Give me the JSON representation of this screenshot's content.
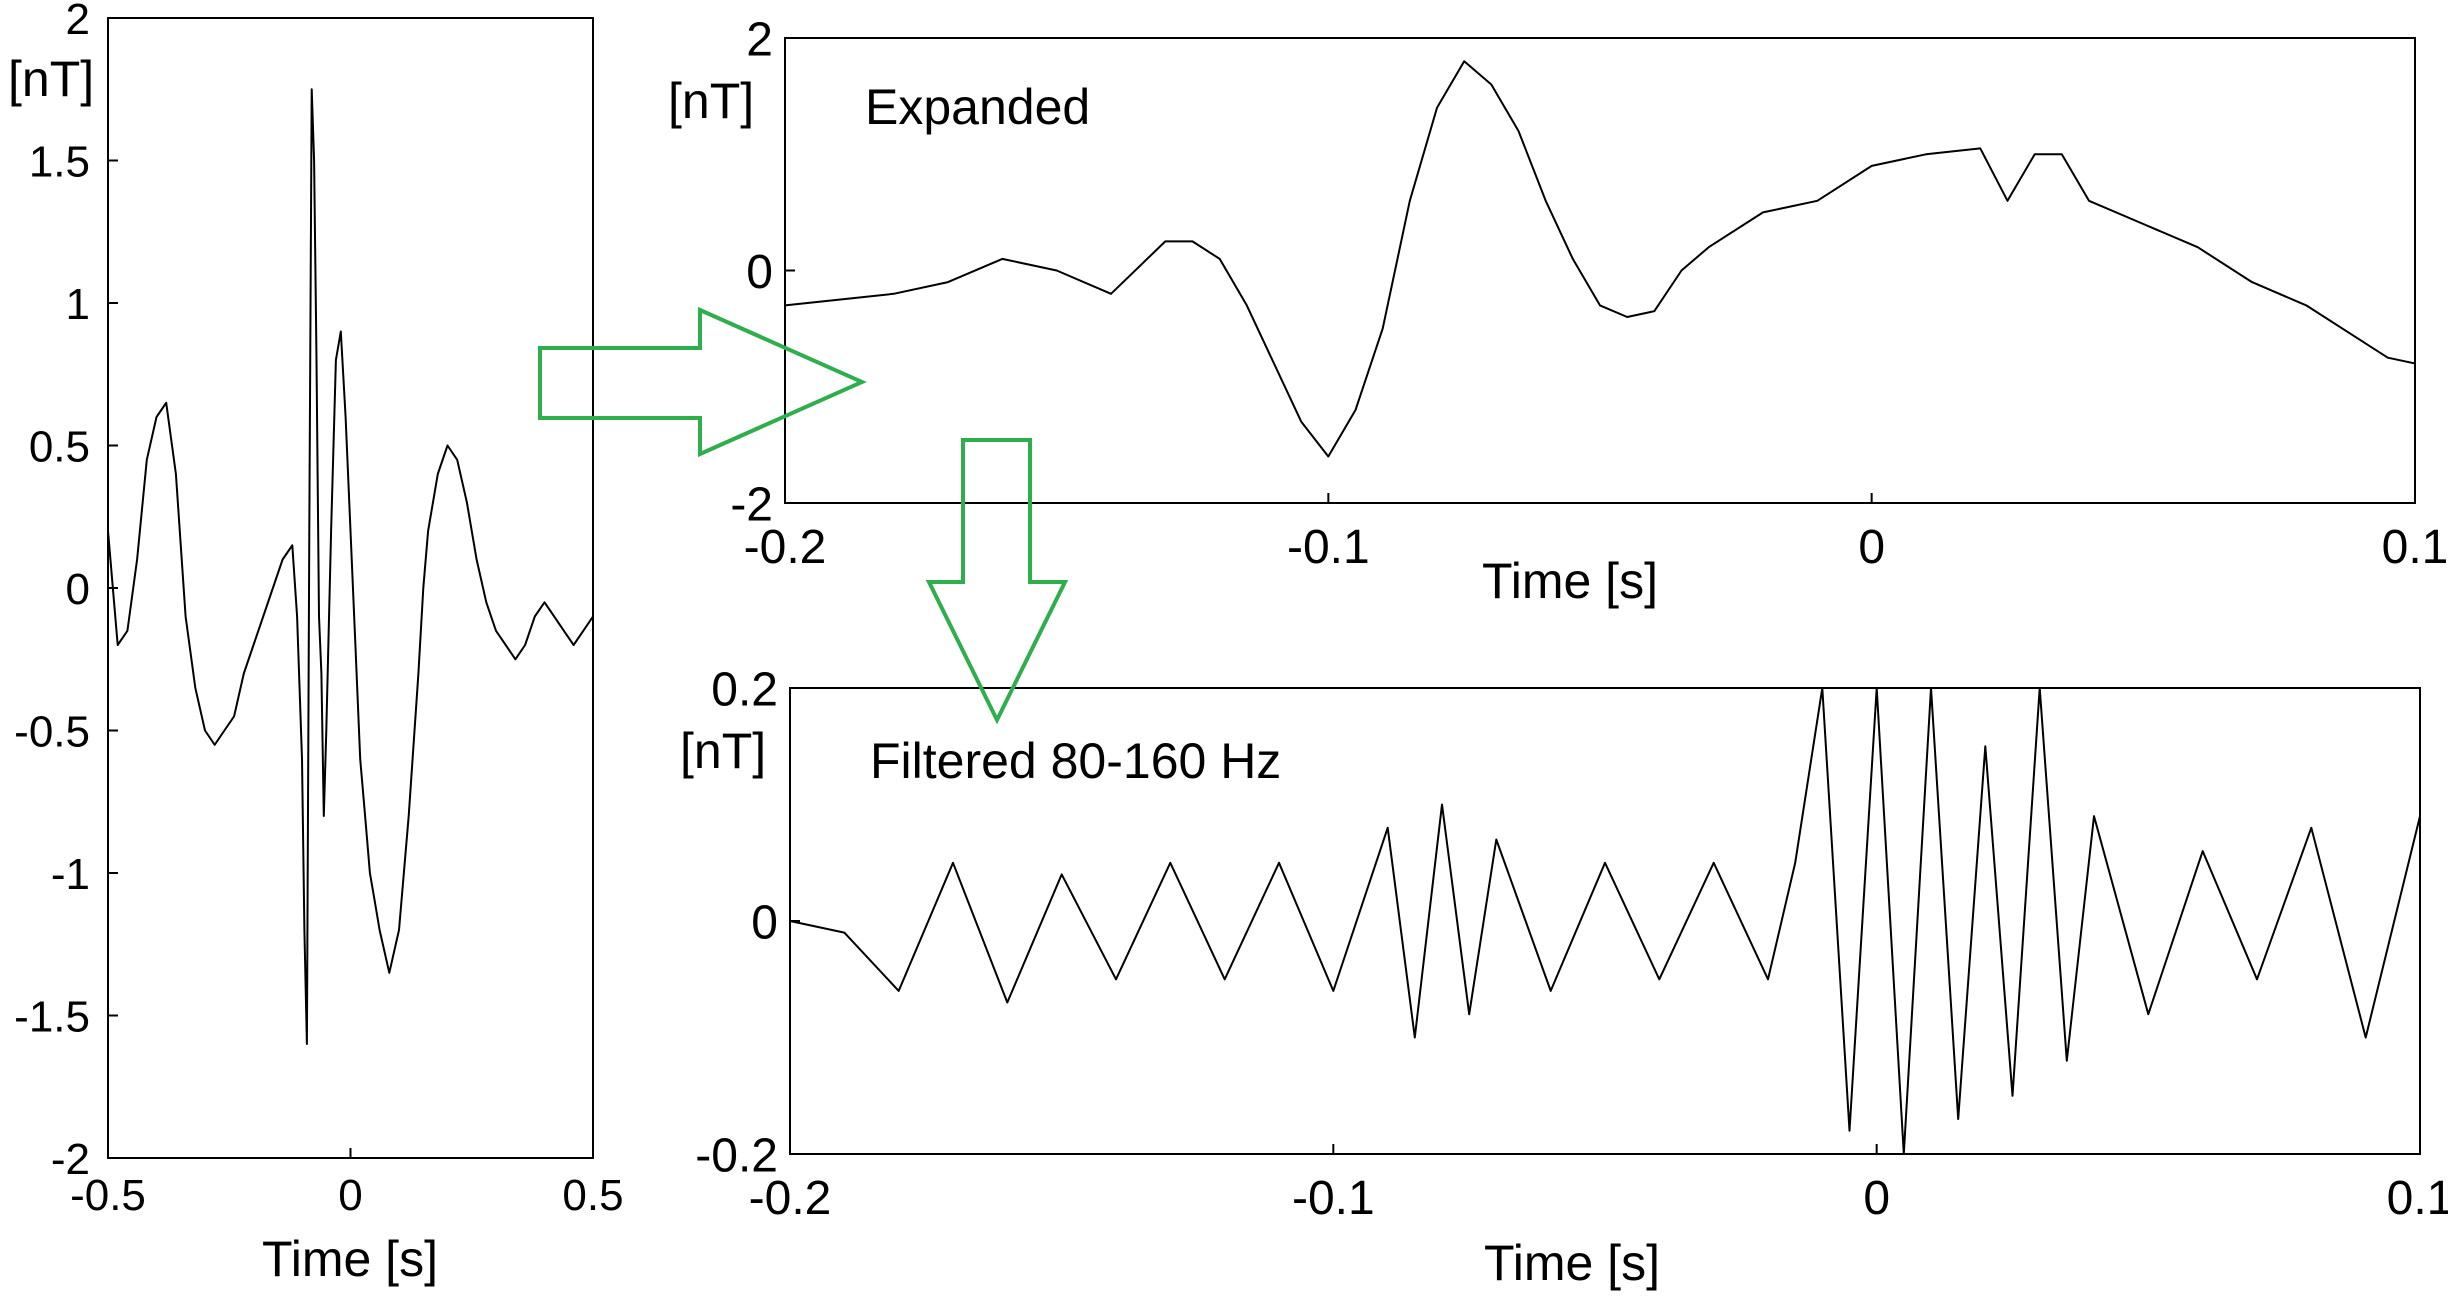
{
  "chart_data": [
    {
      "type": "line",
      "xlabel": "Time [s]",
      "ylabel": "[nT]",
      "xlim": [
        -0.5,
        0.5
      ],
      "ylim": [
        -2,
        2
      ],
      "xticks": [
        "-0.5",
        "0",
        "0.5"
      ],
      "yticks": [
        "2",
        "1.5",
        "1",
        "0.5",
        "0",
        "-0.5",
        "-1",
        "-1.5",
        "-2"
      ],
      "series": [
        {
          "x": [
            -0.5,
            -0.48,
            -0.46,
            -0.44,
            -0.42,
            -0.4,
            -0.38,
            -0.36,
            -0.34,
            -0.32,
            -0.3,
            -0.28,
            -0.26,
            -0.24,
            -0.22,
            -0.2,
            -0.18,
            -0.16,
            -0.14,
            -0.12,
            -0.11,
            -0.1,
            -0.095,
            -0.09,
            -0.085,
            -0.08,
            -0.075,
            -0.07,
            -0.065,
            -0.06,
            -0.055,
            -0.05,
            -0.04,
            -0.03,
            -0.02,
            -0.01,
            0,
            0.01,
            0.02,
            0.03,
            0.04,
            0.05,
            0.06,
            0.08,
            0.1,
            0.12,
            0.14,
            0.15,
            0.16,
            0.18,
            0.2,
            0.22,
            0.24,
            0.26,
            0.28,
            0.3,
            0.32,
            0.34,
            0.36,
            0.38,
            0.4,
            0.42,
            0.44,
            0.46,
            0.48,
            0.5
          ],
          "y": [
            0.2,
            -0.2,
            -0.15,
            0.1,
            0.45,
            0.6,
            0.65,
            0.4,
            -0.1,
            -0.35,
            -0.5,
            -0.55,
            -0.5,
            -0.45,
            -0.3,
            -0.2,
            -0.1,
            0,
            0.1,
            0.15,
            -0.1,
            -0.6,
            -1.2,
            -1.6,
            0.2,
            1.75,
            1.5,
            0.8,
            -0.1,
            -0.3,
            -0.8,
            -0.5,
            0.2,
            0.8,
            0.9,
            0.6,
            0.2,
            -0.2,
            -0.6,
            -0.8,
            -1,
            -1.1,
            -1.2,
            -1.35,
            -1.2,
            -0.8,
            -0.3,
            0,
            0.2,
            0.4,
            0.5,
            0.45,
            0.3,
            0.1,
            -0.05,
            -0.15,
            -0.2,
            -0.25,
            -0.2,
            -0.1,
            -0.05,
            -0.1,
            -0.15,
            -0.2,
            -0.15,
            -0.1
          ]
        }
      ]
    },
    {
      "type": "line",
      "annotation": "Expanded",
      "xlabel": "Time [s]",
      "ylabel": "[nT]",
      "xlim": [
        -0.2,
        0.1
      ],
      "ylim": [
        -2,
        2
      ],
      "xticks": [
        "-0.2",
        "-0.1",
        "0",
        "0.1"
      ],
      "yticks": [
        "2",
        "0",
        "-2"
      ],
      "series": [
        {
          "x": [
            -0.2,
            -0.19,
            -0.18,
            -0.17,
            -0.16,
            -0.15,
            -0.14,
            -0.13,
            -0.125,
            -0.12,
            -0.115,
            -0.11,
            -0.105,
            -0.1,
            -0.095,
            -0.09,
            -0.085,
            -0.08,
            -0.075,
            -0.07,
            -0.065,
            -0.06,
            -0.055,
            -0.05,
            -0.045,
            -0.04,
            -0.035,
            -0.03,
            -0.02,
            -0.01,
            0,
            0.01,
            0.02,
            0.025,
            0.03,
            0.035,
            0.04,
            0.05,
            0.06,
            0.07,
            0.08,
            0.09,
            0.095,
            0.1
          ],
          "y": [
            -0.3,
            -0.25,
            -0.2,
            -0.1,
            0.1,
            0,
            -0.2,
            0.25,
            0.25,
            0.1,
            -0.3,
            -0.8,
            -1.3,
            -1.6,
            -1.2,
            -0.5,
            0.6,
            1.4,
            1.8,
            1.6,
            1.2,
            0.6,
            0.1,
            -0.3,
            -0.4,
            -0.35,
            0,
            0.2,
            0.5,
            0.6,
            0.9,
            1,
            1.05,
            0.6,
            1,
            1,
            0.6,
            0.4,
            0.2,
            -0.1,
            -0.3,
            -0.6,
            -0.75,
            -0.8
          ]
        }
      ]
    },
    {
      "type": "line",
      "annotation": "Filtered 80-160 Hz",
      "xlabel": "Time [s]",
      "ylabel": "[nT]",
      "xlim": [
        -0.2,
        0.1
      ],
      "ylim": [
        -0.2,
        0.2
      ],
      "xticks": [
        "-0.2",
        "-0.1",
        "0",
        "0.1"
      ],
      "yticks": [
        "0.2",
        "0",
        "-0.2"
      ],
      "series": [
        {
          "x": [
            -0.2,
            -0.19,
            -0.18,
            -0.17,
            -0.16,
            -0.15,
            -0.14,
            -0.13,
            -0.12,
            -0.11,
            -0.1,
            -0.09,
            -0.085,
            -0.08,
            -0.075,
            -0.07,
            -0.06,
            -0.05,
            -0.04,
            -0.03,
            -0.02,
            -0.015,
            -0.01,
            -0.005,
            0,
            0.005,
            0.01,
            0.015,
            0.02,
            0.025,
            0.03,
            0.035,
            0.04,
            0.05,
            0.06,
            0.07,
            0.08,
            0.09,
            0.1
          ],
          "y": [
            0,
            -0.01,
            -0.06,
            0.05,
            -0.07,
            0.04,
            -0.05,
            0.05,
            -0.05,
            0.05,
            -0.06,
            0.08,
            -0.1,
            0.1,
            -0.08,
            0.07,
            -0.06,
            0.05,
            -0.05,
            0.05,
            -0.05,
            0.05,
            0.2,
            -0.18,
            0.2,
            -0.2,
            0.2,
            -0.17,
            0.15,
            -0.15,
            0.2,
            -0.12,
            0.09,
            -0.08,
            0.06,
            -0.05,
            0.08,
            -0.1,
            0.09
          ]
        }
      ]
    }
  ],
  "arrows": {
    "color": "#2fae4e"
  }
}
